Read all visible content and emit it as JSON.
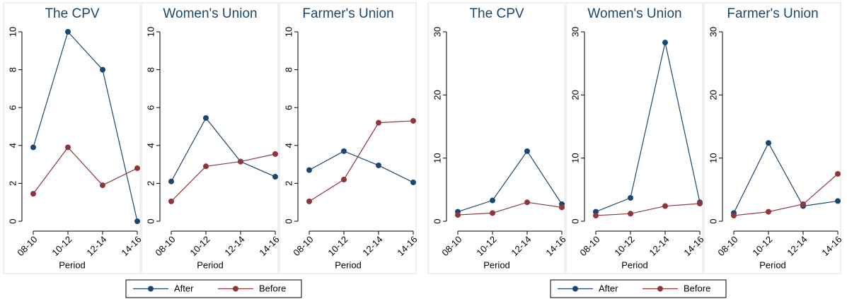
{
  "chart_data": [
    {
      "type": "line",
      "title": "The CPV",
      "x_label": "Period",
      "categories": [
        "08-10",
        "10-12",
        "12-14",
        "14-16"
      ],
      "series": [
        {
          "name": "After",
          "color": "#1a476f",
          "values": [
            3.9,
            10,
            8.0,
            0
          ]
        },
        {
          "name": "Before",
          "color": "#90353b",
          "values": [
            1.45,
            3.9,
            1.9,
            2.8
          ]
        }
      ],
      "ylim": [
        0,
        10
      ],
      "yticks": [
        0,
        2,
        4,
        6,
        8,
        10
      ]
    },
    {
      "type": "line",
      "title": "Women's Union",
      "x_label": "Period",
      "categories": [
        "08-10",
        "10-12",
        "12-14",
        "14-16"
      ],
      "series": [
        {
          "name": "After",
          "color": "#1a476f",
          "values": [
            2.1,
            5.45,
            3.15,
            2.35
          ]
        },
        {
          "name": "Before",
          "color": "#90353b",
          "values": [
            1.05,
            2.9,
            3.15,
            3.55
          ]
        }
      ],
      "ylim": [
        0,
        10
      ],
      "yticks": [
        0,
        2,
        4,
        6,
        8,
        10
      ]
    },
    {
      "type": "line",
      "title": "Farmer's Union",
      "x_label": "Period",
      "categories": [
        "08-10",
        "10-12",
        "12-14",
        "14-16"
      ],
      "series": [
        {
          "name": "After",
          "color": "#1a476f",
          "values": [
            2.7,
            3.7,
            2.95,
            2.05
          ]
        },
        {
          "name": "Before",
          "color": "#90353b",
          "values": [
            1.05,
            2.2,
            5.2,
            5.3
          ]
        }
      ],
      "ylim": [
        0,
        10
      ],
      "yticks": [
        0,
        2,
        4,
        6,
        8,
        10
      ]
    },
    {
      "type": "line",
      "title": "The CPV",
      "x_label": "Period",
      "categories": [
        "08-10",
        "10-12",
        "12-14",
        "14-16"
      ],
      "series": [
        {
          "name": "After",
          "color": "#1a476f",
          "values": [
            1.5,
            3.3,
            11.1,
            2.7
          ]
        },
        {
          "name": "Before",
          "color": "#90353b",
          "values": [
            1.0,
            1.3,
            3.0,
            2.2
          ]
        }
      ],
      "ylim": [
        0,
        30
      ],
      "yticks": [
        0,
        10,
        20,
        30
      ]
    },
    {
      "type": "line",
      "title": "Women's Union",
      "x_label": "Period",
      "categories": [
        "08-10",
        "10-12",
        "12-14",
        "14-16"
      ],
      "series": [
        {
          "name": "After",
          "color": "#1a476f",
          "values": [
            1.5,
            3.7,
            28.3,
            3.0
          ]
        },
        {
          "name": "Before",
          "color": "#90353b",
          "values": [
            0.9,
            1.2,
            2.4,
            2.8
          ]
        }
      ],
      "ylim": [
        0,
        30
      ],
      "yticks": [
        0,
        10,
        20,
        30
      ]
    },
    {
      "type": "line",
      "title": "Farmer's Union",
      "x_label": "Period",
      "categories": [
        "08-10",
        "10-12",
        "12-14",
        "14-16"
      ],
      "series": [
        {
          "name": "After",
          "color": "#1a476f",
          "values": [
            1.3,
            12.4,
            2.4,
            3.2
          ]
        },
        {
          "name": "Before",
          "color": "#90353b",
          "values": [
            0.9,
            1.5,
            2.7,
            7.5
          ]
        }
      ],
      "ylim": [
        0,
        30
      ],
      "yticks": [
        0,
        10,
        20,
        30
      ]
    }
  ]
}
